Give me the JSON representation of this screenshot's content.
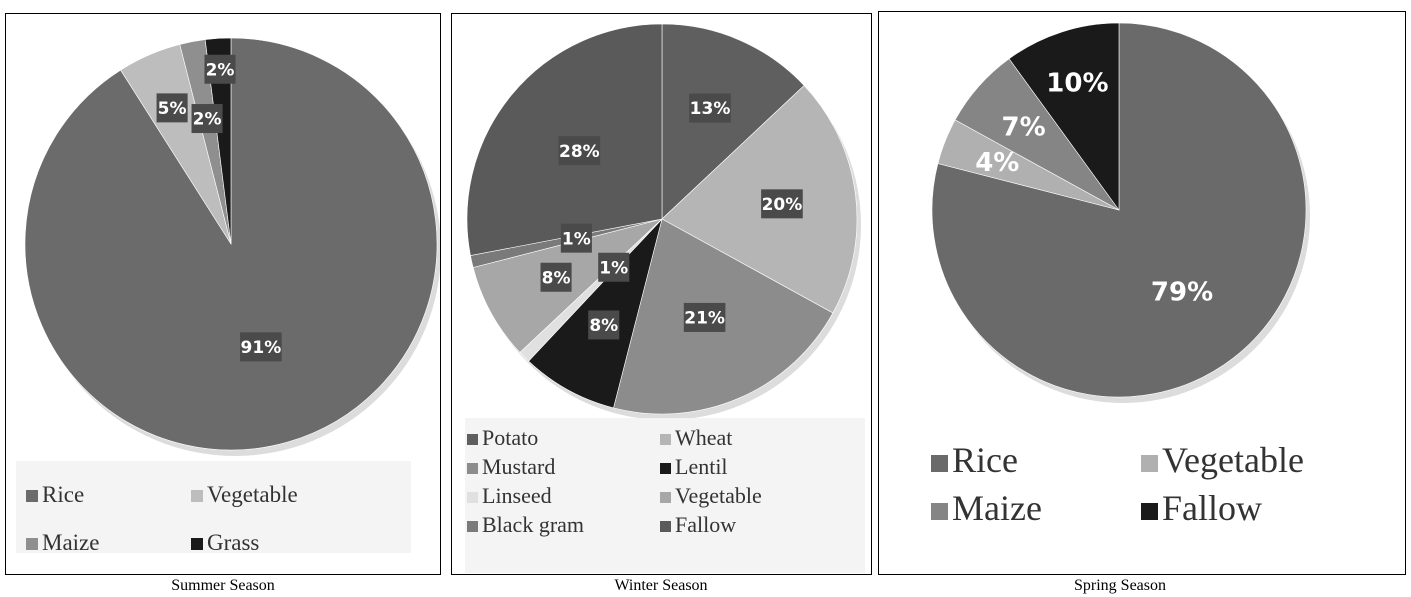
{
  "chart_data": [
    {
      "type": "pie",
      "title": "",
      "caption": "Summer Season",
      "slices": [
        {
          "label": "Rice",
          "value": 91,
          "display": "91%",
          "color": "#6b6b6b"
        },
        {
          "label": "Vegetable",
          "value": 5,
          "display": "5%",
          "color": "#bdbdbd"
        },
        {
          "label": "Maize",
          "value": 2,
          "display": "2%",
          "color": "#8f8f8f"
        },
        {
          "label": "Grass",
          "value": 2,
          "display": "2%",
          "color": "#1a1a1a"
        }
      ],
      "legend": [
        "Rice",
        "Vegetable",
        "Maize",
        "Grass"
      ],
      "legend_colors": [
        "#6b6b6b",
        "#bdbdbd",
        "#8f8f8f",
        "#1a1a1a"
      ],
      "legend_placement": "bottom"
    },
    {
      "type": "pie",
      "title": "",
      "caption": "Winter Season",
      "slices": [
        {
          "label": "Potato",
          "value": 13,
          "display": "13%",
          "color": "#5f5f5f"
        },
        {
          "label": "Wheat",
          "value": 20,
          "display": "20%",
          "color": "#b5b5b5"
        },
        {
          "label": "Mustard",
          "value": 21,
          "display": "21%",
          "color": "#8c8c8c"
        },
        {
          "label": "Lentil",
          "value": 8,
          "display": "8%",
          "color": "#1a1a1a"
        },
        {
          "label": "Linseed",
          "value": 1,
          "display": "1%",
          "color": "#e0e0e0"
        },
        {
          "label": "Vegetable",
          "value": 8,
          "display": "8%",
          "color": "#a7a7a7"
        },
        {
          "label": "Black gram",
          "value": 1,
          "display": "1%",
          "color": "#7a7a7a"
        },
        {
          "label": "Fallow",
          "value": 28,
          "display": "28%",
          "color": "#5a5a5a"
        }
      ],
      "legend": [
        "Potato",
        "Wheat",
        "Mustard",
        "Lentil",
        "Linseed",
        "Vegetable",
        "Black gram",
        "Fallow"
      ],
      "legend_colors": [
        "#5f5f5f",
        "#b5b5b5",
        "#8c8c8c",
        "#1a1a1a",
        "#e0e0e0",
        "#a7a7a7",
        "#7a7a7a",
        "#5a5a5a"
      ],
      "legend_placement": "bottom"
    },
    {
      "type": "pie",
      "title": "",
      "caption": "Spring Season",
      "slices": [
        {
          "label": "Rice",
          "value": 79,
          "display": "79%",
          "color": "#6a6a6a"
        },
        {
          "label": "Vegetable",
          "value": 4,
          "display": "4%",
          "color": "#b0b0b0"
        },
        {
          "label": "Maize",
          "value": 7,
          "display": "7%",
          "color": "#858585"
        },
        {
          "label": "Fallow",
          "value": 10,
          "display": "10%",
          "color": "#1a1a1a"
        }
      ],
      "legend": [
        "Rice",
        "Vegetable",
        "Maize",
        "Fallow"
      ],
      "legend_colors": [
        "#6a6a6a",
        "#b0b0b0",
        "#858585",
        "#1a1a1a"
      ],
      "legend_placement": "bottom"
    }
  ]
}
